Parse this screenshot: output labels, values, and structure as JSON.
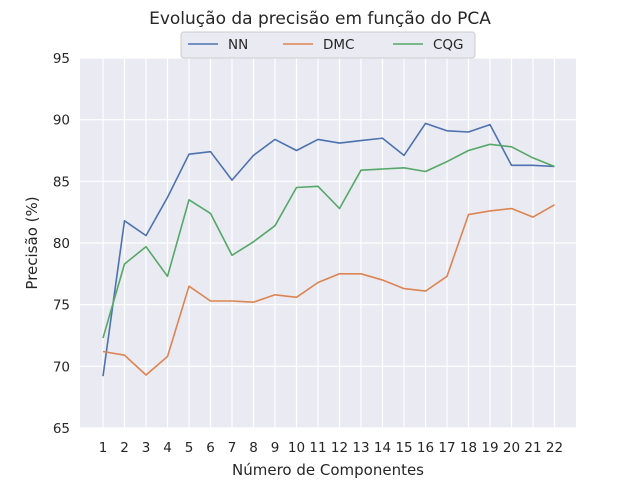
{
  "chart_data": {
    "type": "line",
    "title": "Evolução da precisão em função do PCA",
    "xlabel": "Número de Componentes",
    "ylabel": "Precisão (%)",
    "x": [
      1,
      2,
      3,
      4,
      5,
      6,
      7,
      8,
      9,
      10,
      11,
      12,
      13,
      14,
      15,
      16,
      17,
      18,
      19,
      20,
      21,
      22
    ],
    "xticks": [
      "1",
      "2",
      "3",
      "4",
      "5",
      "6",
      "7",
      "8",
      "9",
      "10",
      "11",
      "12",
      "13",
      "14",
      "15",
      "16",
      "17",
      "18",
      "19",
      "20",
      "21",
      "22"
    ],
    "ylim": [
      65,
      95
    ],
    "yticks": [
      65,
      70,
      75,
      80,
      85,
      90,
      95
    ],
    "grid": true,
    "legend_position": "top-center",
    "series": [
      {
        "name": "NN",
        "color": "#4c72b0",
        "values": [
          69.2,
          81.8,
          80.6,
          83.7,
          87.2,
          87.4,
          85.1,
          87.1,
          88.4,
          87.5,
          88.4,
          88.1,
          88.3,
          88.5,
          87.1,
          89.7,
          89.1,
          89.0,
          89.6,
          86.3,
          86.3,
          86.2
        ]
      },
      {
        "name": "DMC",
        "color": "#dd8452",
        "values": [
          71.2,
          70.9,
          69.3,
          70.8,
          76.5,
          75.3,
          75.3,
          75.2,
          75.8,
          75.6,
          76.8,
          77.5,
          77.5,
          77.0,
          76.3,
          76.1,
          77.3,
          82.3,
          82.6,
          82.8,
          82.1,
          83.1
        ]
      },
      {
        "name": "CQG",
        "color": "#55a868",
        "values": [
          72.3,
          78.3,
          79.7,
          77.3,
          83.5,
          82.4,
          79.0,
          80.1,
          81.4,
          84.5,
          84.6,
          82.8,
          85.9,
          86.0,
          86.1,
          85.8,
          86.6,
          87.5,
          88.0,
          87.8,
          86.9,
          86.2
        ]
      }
    ]
  }
}
